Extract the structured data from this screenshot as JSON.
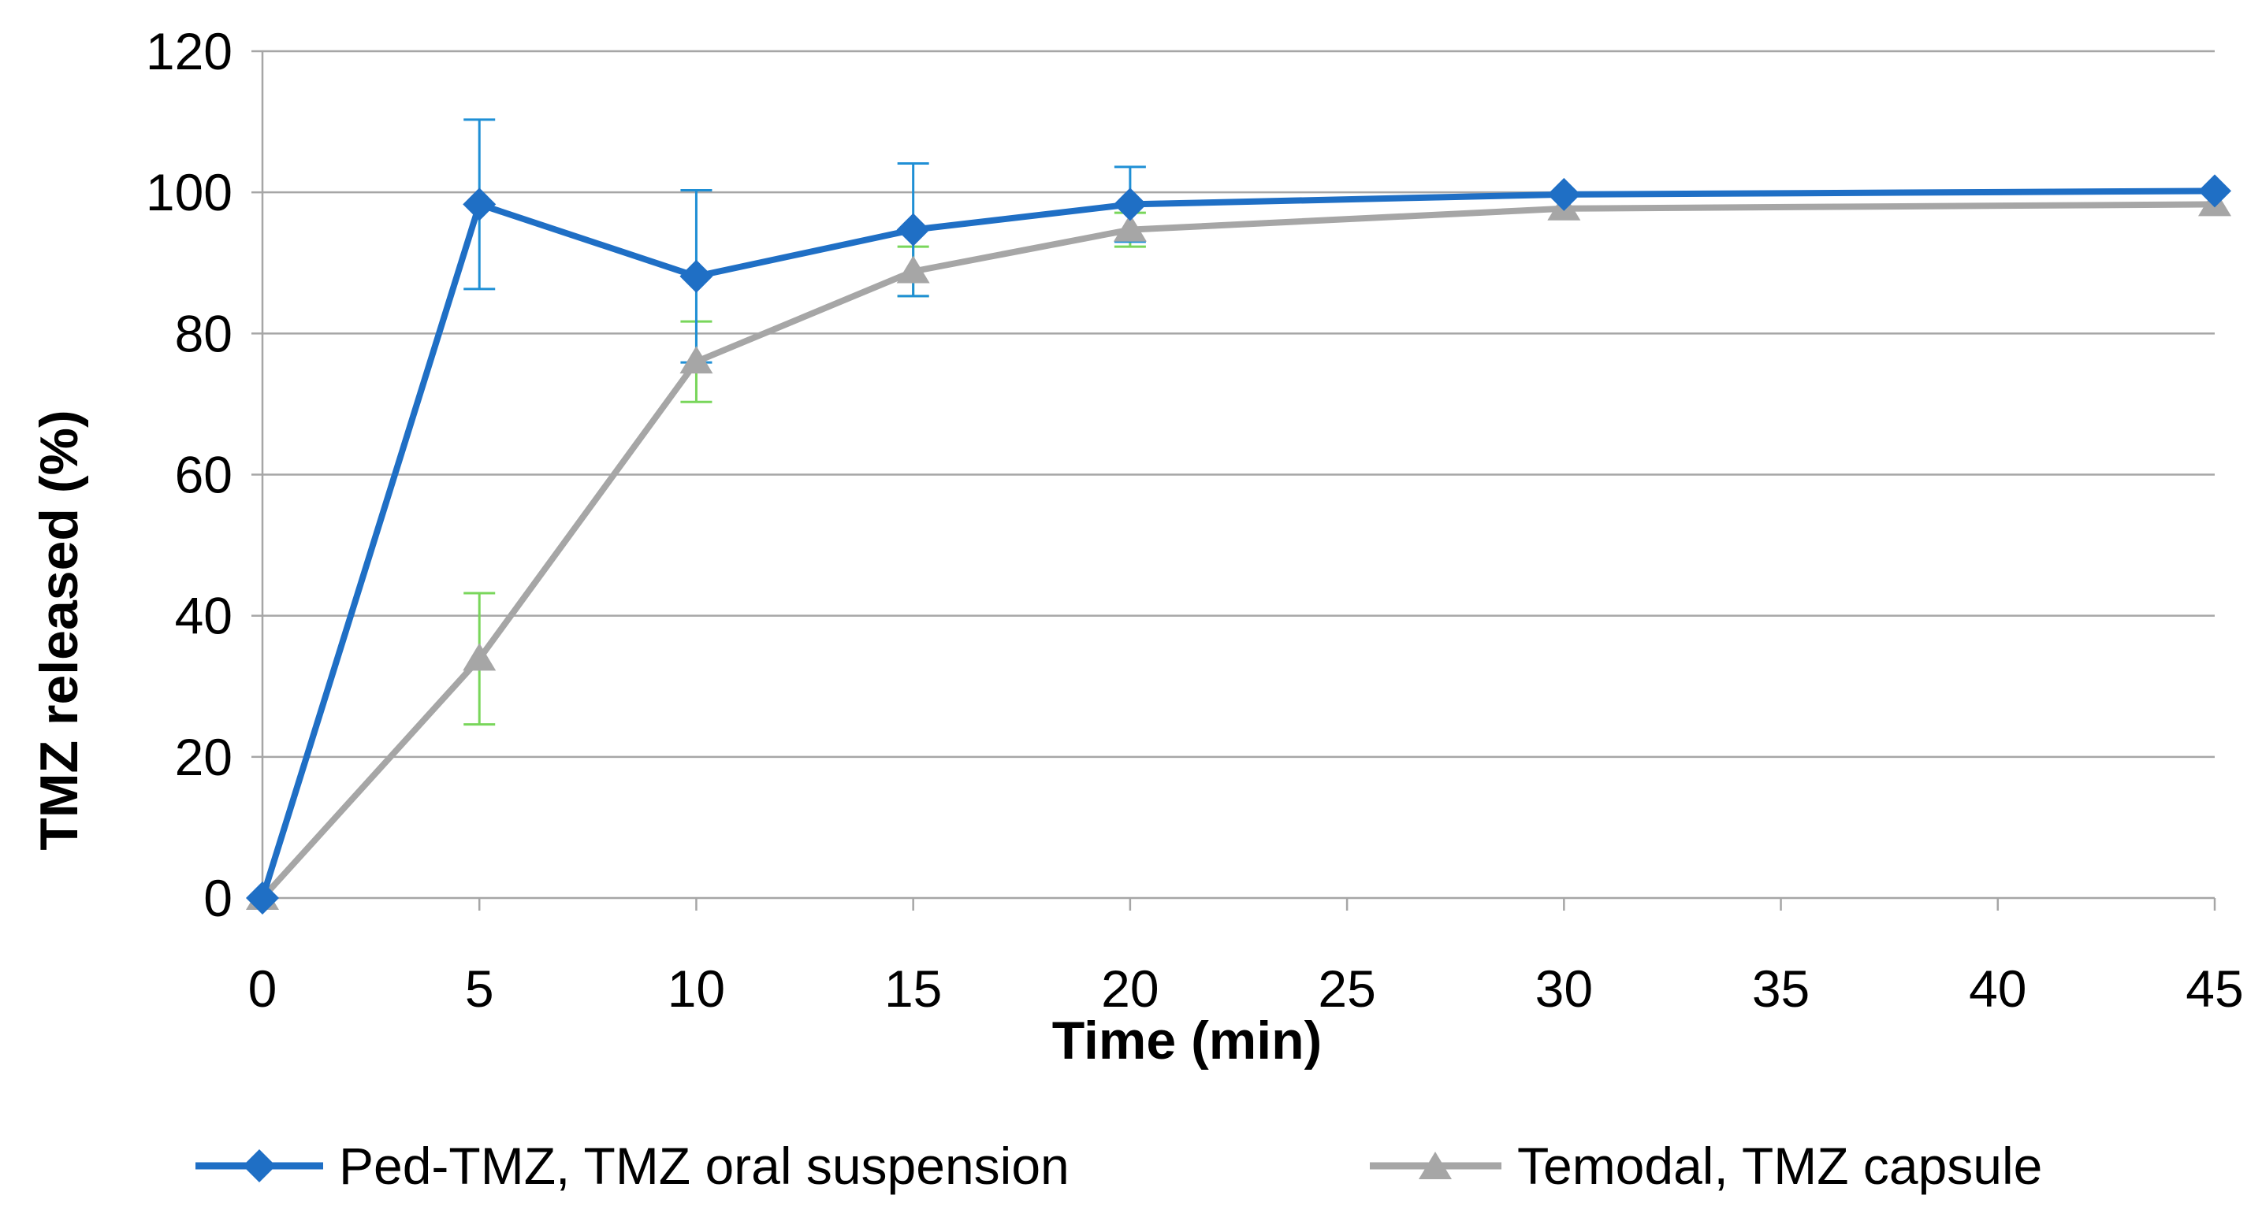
{
  "chart_data": {
    "type": "line",
    "title": "",
    "xlabel": "Time (min)",
    "ylabel": "TMZ released (%)",
    "x_ticks": [
      0,
      5,
      10,
      15,
      20,
      25,
      30,
      35,
      40,
      45
    ],
    "y_ticks": [
      0,
      20,
      40,
      60,
      80,
      100,
      120
    ],
    "xlim": [
      0,
      45
    ],
    "ylim": [
      0,
      120
    ],
    "grid": "horizontal",
    "legend_position": "bottom",
    "series": [
      {
        "name": "Ped-TMZ, TMZ oral suspension",
        "color": "#1f6fc5",
        "marker": "diamond",
        "x": [
          0,
          5,
          10,
          15,
          20,
          30,
          45
        ],
        "values": [
          0,
          98.3,
          88.1,
          94.7,
          98.3,
          99.7,
          100.2
        ],
        "errors": [
          0,
          12.0,
          12.2,
          9.4,
          5.3,
          0,
          0
        ],
        "error_color": "#1f8fd5"
      },
      {
        "name": "Temodal, TMZ capsule",
        "color": "#a6a6a6",
        "marker": "triangle",
        "x": [
          0,
          5,
          10,
          15,
          20,
          30,
          45
        ],
        "values": [
          0,
          33.9,
          76.0,
          88.8,
          94.7,
          97.7,
          98.3
        ],
        "errors": [
          0,
          9.3,
          5.7,
          3.5,
          2.4,
          0,
          0
        ],
        "error_color": "#79d65b"
      }
    ]
  }
}
